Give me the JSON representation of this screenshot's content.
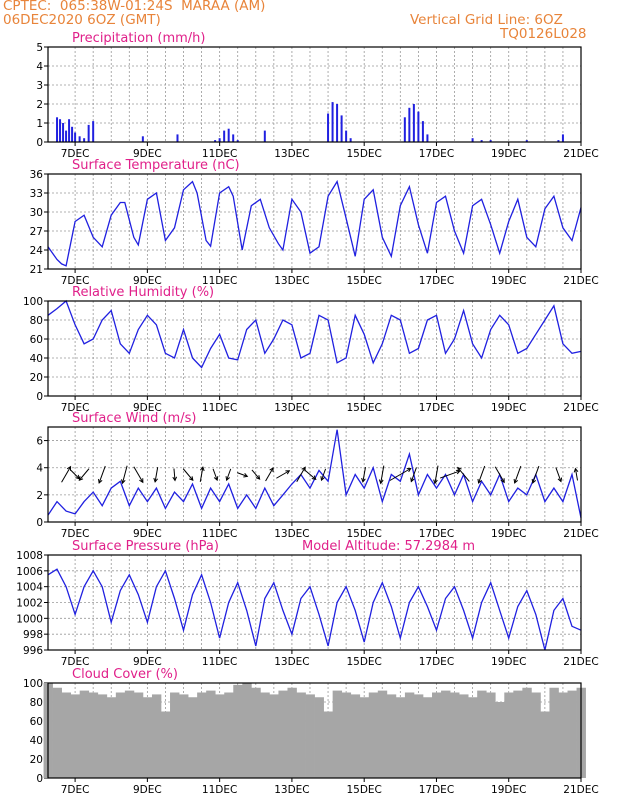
{
  "header": {
    "line1": "CPTEC:  065:38W-01:24S  MARAA (AM)",
    "line2": "06DEC2020 6OZ (GMT)",
    "grid_note": "Vertical Grid Line: 6OZ",
    "code": "TQ0126L028"
  },
  "colors": {
    "series": "#2020e0",
    "cloud": "#a6a6a6",
    "title": "#e0208a",
    "header": "#e8843a"
  },
  "x_axis": {
    "start": "06DEC2020 06Z",
    "end": "21DEC2020 00Z",
    "tick_labels": [
      "7DEC",
      "9DEC",
      "11DEC",
      "13DEC",
      "15DEC",
      "17DEC",
      "19DEC",
      "21DEC"
    ]
  },
  "chart_data": [
    {
      "type": "bar",
      "title": "Precipitation (mm/h)",
      "ylim": [
        0,
        5
      ],
      "yticks": [
        "0",
        "1",
        "2",
        "3",
        "4",
        "5"
      ],
      "grid": true,
      "x": [
        "06DEC 12Z",
        "06DEC 14Z",
        "06DEC 16Z",
        "06DEC 18Z",
        "06DEC 20Z",
        "06DEC 22Z",
        "07DEC 00Z",
        "07DEC 03Z",
        "07DEC 06Z",
        "07DEC 09Z",
        "07DEC 12Z",
        "08DEC 21Z",
        "09DEC 20Z",
        "10DEC 21Z",
        "11DEC 00Z",
        "11DEC 03Z",
        "11DEC 06Z",
        "11DEC 09Z",
        "11DEC 12Z",
        "12DEC 06Z",
        "14DEC 00Z",
        "14DEC 03Z",
        "14DEC 06Z",
        "14DEC 09Z",
        "14DEC 12Z",
        "14DEC 15Z",
        "16DEC 03Z",
        "16DEC 06Z",
        "16DEC 09Z",
        "16DEC 12Z",
        "16DEC 15Z",
        "16DEC 18Z",
        "18DEC 00Z",
        "18DEC 06Z",
        "18DEC 12Z",
        "19DEC 12Z",
        "20DEC 09Z",
        "20DEC 12Z"
      ],
      "values": [
        1.3,
        1.2,
        1.0,
        0.6,
        1.2,
        0.8,
        0.5,
        0.3,
        0.2,
        0.9,
        1.1,
        0.3,
        0.4,
        0.1,
        0.2,
        0.6,
        0.7,
        0.4,
        0.1,
        0.6,
        1.5,
        2.1,
        2.0,
        1.4,
        0.6,
        0.2,
        1.3,
        1.8,
        2.0,
        1.6,
        1.1,
        0.4,
        0.2,
        0.1,
        0.1,
        0.1,
        0.1,
        0.4
      ]
    },
    {
      "type": "line",
      "title": "Surface Temperature (nC)",
      "ylim": [
        21,
        36
      ],
      "yticks": [
        "21",
        "24",
        "27",
        "30",
        "33",
        "36"
      ],
      "grid": true,
      "x": [
        "06DEC 06Z",
        "06DEC 12Z",
        "06DEC 15Z",
        "06DEC 18Z",
        "07DEC 00Z",
        "07DEC 06Z",
        "07DEC 12Z",
        "07DEC 18Z",
        "08DEC 00Z",
        "08DEC 06Z",
        "08DEC 09Z",
        "08DEC 15Z",
        "08DEC 18Z",
        "09DEC 00Z",
        "09DEC 06Z",
        "09DEC 12Z",
        "09DEC 18Z",
        "10DEC 00Z",
        "10DEC 06Z",
        "10DEC 09Z",
        "10DEC 15Z",
        "10DEC 18Z",
        "11DEC 00Z",
        "11DEC 06Z",
        "11DEC 09Z",
        "11DEC 15Z",
        "11DEC 21Z",
        "12DEC 03Z",
        "12DEC 09Z",
        "12DEC 15Z",
        "12DEC 18Z",
        "13DEC 00Z",
        "13DEC 06Z",
        "13DEC 12Z",
        "13DEC 18Z",
        "14DEC 00Z",
        "14DEC 06Z",
        "14DEC 12Z",
        "14DEC 18Z",
        "15DEC 00Z",
        "15DEC 06Z",
        "15DEC 12Z",
        "15DEC 18Z",
        "16DEC 00Z",
        "16DEC 06Z",
        "16DEC 12Z",
        "16DEC 18Z",
        "17DEC 00Z",
        "17DEC 06Z",
        "17DEC 12Z",
        "17DEC 18Z",
        "18DEC 00Z",
        "18DEC 06Z",
        "18DEC 12Z",
        "18DEC 18Z",
        "19DEC 00Z",
        "19DEC 06Z",
        "19DEC 12Z",
        "19DEC 18Z",
        "20DEC 00Z",
        "20DEC 06Z",
        "20DEC 12Z",
        "20DEC 18Z",
        "21DEC 00Z"
      ],
      "values": [
        24.5,
        22.5,
        21.8,
        21.5,
        28.5,
        29.5,
        26.0,
        24.5,
        29.5,
        31.5,
        31.5,
        26.0,
        24.8,
        32.0,
        33.0,
        25.5,
        27.5,
        33.5,
        34.8,
        33.0,
        25.5,
        24.6,
        33.0,
        34.0,
        32.5,
        24.0,
        31.0,
        32.0,
        27.5,
        25.0,
        24.0,
        32.0,
        30.0,
        23.5,
        24.5,
        32.5,
        34.8,
        29.0,
        23.0,
        32.0,
        33.5,
        26.0,
        23.0,
        31.0,
        34.0,
        28.0,
        23.5,
        31.5,
        32.5,
        27.0,
        23.5,
        31.0,
        32.0,
        28.0,
        23.5,
        28.5,
        32.0,
        26.0,
        24.5,
        30.5,
        32.5,
        27.5,
        25.5,
        30.7
      ]
    },
    {
      "type": "line",
      "title": "Relative Humidity (%)",
      "ylim": [
        0,
        100
      ],
      "yticks": [
        "0",
        "20",
        "40",
        "60",
        "80",
        "100"
      ],
      "grid": true,
      "x": [
        "06DEC 06Z",
        "06DEC 12Z",
        "06DEC 18Z",
        "07DEC 00Z",
        "07DEC 06Z",
        "07DEC 12Z",
        "07DEC 18Z",
        "08DEC 00Z",
        "08DEC 06Z",
        "08DEC 12Z",
        "08DEC 18Z",
        "09DEC 00Z",
        "09DEC 06Z",
        "09DEC 12Z",
        "09DEC 18Z",
        "10DEC 00Z",
        "10DEC 06Z",
        "10DEC 12Z",
        "10DEC 18Z",
        "11DEC 00Z",
        "11DEC 06Z",
        "11DEC 12Z",
        "11DEC 18Z",
        "12DEC 00Z",
        "12DEC 06Z",
        "12DEC 12Z",
        "12DEC 18Z",
        "13DEC 00Z",
        "13DEC 06Z",
        "13DEC 12Z",
        "13DEC 18Z",
        "14DEC 00Z",
        "14DEC 06Z",
        "14DEC 12Z",
        "14DEC 18Z",
        "15DEC 00Z",
        "15DEC 06Z",
        "15DEC 12Z",
        "15DEC 18Z",
        "16DEC 00Z",
        "16DEC 06Z",
        "16DEC 12Z",
        "16DEC 18Z",
        "17DEC 00Z",
        "17DEC 06Z",
        "17DEC 12Z",
        "17DEC 18Z",
        "18DEC 00Z",
        "18DEC 06Z",
        "18DEC 12Z",
        "18DEC 18Z",
        "19DEC 00Z",
        "19DEC 06Z",
        "19DEC 12Z",
        "19DEC 18Z",
        "20DEC 00Z",
        "20DEC 06Z",
        "20DEC 12Z",
        "20DEC 18Z",
        "21DEC 00Z"
      ],
      "values": [
        85,
        92,
        100,
        75,
        55,
        60,
        80,
        90,
        55,
        45,
        70,
        85,
        75,
        45,
        40,
        70,
        40,
        30,
        50,
        65,
        40,
        38,
        70,
        80,
        45,
        60,
        80,
        75,
        40,
        45,
        85,
        80,
        35,
        40,
        85,
        65,
        35,
        55,
        85,
        80,
        45,
        50,
        80,
        85,
        45,
        60,
        90,
        55,
        40,
        70,
        85,
        75,
        45,
        50,
        65,
        80,
        95,
        55,
        45,
        47
      ]
    },
    {
      "type": "line",
      "title": "Surface Wind (m/s)",
      "ylim": [
        0,
        7
      ],
      "yticks": [
        "0",
        "2",
        "4",
        "6"
      ],
      "grid": true,
      "x": [
        "06DEC 06Z",
        "06DEC 12Z",
        "06DEC 18Z",
        "07DEC 00Z",
        "07DEC 06Z",
        "07DEC 12Z",
        "07DEC 18Z",
        "08DEC 00Z",
        "08DEC 06Z",
        "08DEC 12Z",
        "08DEC 18Z",
        "09DEC 00Z",
        "09DEC 06Z",
        "09DEC 12Z",
        "09DEC 18Z",
        "10DEC 00Z",
        "10DEC 06Z",
        "10DEC 12Z",
        "10DEC 18Z",
        "11DEC 00Z",
        "11DEC 06Z",
        "11DEC 12Z",
        "11DEC 18Z",
        "12DEC 00Z",
        "12DEC 06Z",
        "12DEC 12Z",
        "12DEC 18Z",
        "13DEC 00Z",
        "13DEC 06Z",
        "13DEC 12Z",
        "13DEC 18Z",
        "14DEC 00Z",
        "14DEC 06Z",
        "14DEC 12Z",
        "14DEC 18Z",
        "15DEC 00Z",
        "15DEC 06Z",
        "15DEC 12Z",
        "15DEC 18Z",
        "16DEC 00Z",
        "16DEC 06Z",
        "16DEC 12Z",
        "16DEC 18Z",
        "17DEC 00Z",
        "17DEC 06Z",
        "17DEC 12Z",
        "17DEC 18Z",
        "18DEC 00Z",
        "18DEC 06Z",
        "18DEC 12Z",
        "18DEC 18Z",
        "19DEC 00Z",
        "19DEC 06Z",
        "19DEC 12Z",
        "19DEC 18Z",
        "20DEC 00Z",
        "20DEC 06Z",
        "20DEC 12Z",
        "20DEC 18Z",
        "21DEC 00Z"
      ],
      "values": [
        0.5,
        1.5,
        0.8,
        0.6,
        1.5,
        2.2,
        1.2,
        2.5,
        3.0,
        1.2,
        2.5,
        1.5,
        2.5,
        1.0,
        2.2,
        1.5,
        2.8,
        1.0,
        2.5,
        1.5,
        2.8,
        1.0,
        2.0,
        1.0,
        2.5,
        1.2,
        2.0,
        2.8,
        3.5,
        2.5,
        3.8,
        3.0,
        6.8,
        2.0,
        3.5,
        2.5,
        4.0,
        1.5,
        3.5,
        3.0,
        5.0,
        2.0,
        3.5,
        2.5,
        3.5,
        2.0,
        3.5,
        1.5,
        3.0,
        2.0,
        3.5,
        1.5,
        2.5,
        2.0,
        3.5,
        1.5,
        2.5,
        1.5,
        3.5,
        0.3
      ]
    },
    {
      "type": "line",
      "title": "Surface Pressure (hPa)",
      "subtitle": "Model Altitude: 57.2984 m",
      "ylim": [
        996,
        1008
      ],
      "yticks": [
        "996",
        "998",
        "1000",
        "1002",
        "1004",
        "1006",
        "1008"
      ],
      "grid": true,
      "x": [
        "06DEC 06Z",
        "06DEC 12Z",
        "06DEC 18Z",
        "07DEC 00Z",
        "07DEC 06Z",
        "07DEC 12Z",
        "07DEC 18Z",
        "08DEC 00Z",
        "08DEC 06Z",
        "08DEC 12Z",
        "08DEC 18Z",
        "09DEC 00Z",
        "09DEC 06Z",
        "09DEC 12Z",
        "09DEC 18Z",
        "10DEC 00Z",
        "10DEC 06Z",
        "10DEC 12Z",
        "10DEC 18Z",
        "11DEC 00Z",
        "11DEC 06Z",
        "11DEC 12Z",
        "11DEC 18Z",
        "12DEC 00Z",
        "12DEC 06Z",
        "12DEC 12Z",
        "12DEC 18Z",
        "13DEC 00Z",
        "13DEC 06Z",
        "13DEC 12Z",
        "13DEC 18Z",
        "14DEC 00Z",
        "14DEC 06Z",
        "14DEC 12Z",
        "14DEC 18Z",
        "15DEC 00Z",
        "15DEC 06Z",
        "15DEC 12Z",
        "15DEC 18Z",
        "16DEC 00Z",
        "16DEC 06Z",
        "16DEC 12Z",
        "16DEC 18Z",
        "17DEC 00Z",
        "17DEC 06Z",
        "17DEC 12Z",
        "17DEC 18Z",
        "18DEC 00Z",
        "18DEC 06Z",
        "18DEC 12Z",
        "18DEC 18Z",
        "19DEC 00Z",
        "19DEC 06Z",
        "19DEC 12Z",
        "19DEC 18Z",
        "20DEC 00Z",
        "20DEC 06Z",
        "20DEC 12Z",
        "20DEC 18Z",
        "21DEC 00Z"
      ],
      "values": [
        1005.5,
        1006.2,
        1004.0,
        1000.5,
        1004.0,
        1006.0,
        1004.0,
        999.5,
        1003.5,
        1005.5,
        1003.0,
        999.5,
        1004.0,
        1006.0,
        1002.5,
        998.5,
        1003.0,
        1005.5,
        1002.0,
        997.5,
        1002.0,
        1004.5,
        1001.0,
        996.5,
        1002.5,
        1004.5,
        1001.0,
        998.0,
        1002.5,
        1004.0,
        1000.5,
        996.5,
        1002.0,
        1004.0,
        1001.0,
        997.0,
        1002.0,
        1004.5,
        1001.5,
        997.5,
        1002.0,
        1004.0,
        1001.5,
        998.5,
        1002.5,
        1004.0,
        1001.0,
        997.5,
        1002.0,
        1004.5,
        1001.0,
        997.5,
        1001.5,
        1003.5,
        1000.5,
        996.0,
        1001.0,
        1002.5,
        999.0,
        998.5
      ]
    },
    {
      "type": "bar",
      "title": "Cloud Cover (%)",
      "ylim": [
        0,
        100
      ],
      "yticks": [
        "0",
        "20",
        "40",
        "60",
        "80",
        "100"
      ],
      "grid": true,
      "x": [
        "06DEC 06Z",
        "06DEC 12Z",
        "06DEC 18Z",
        "07DEC 00Z",
        "07DEC 06Z",
        "07DEC 12Z",
        "07DEC 18Z",
        "08DEC 00Z",
        "08DEC 06Z",
        "08DEC 12Z",
        "08DEC 18Z",
        "09DEC 00Z",
        "09DEC 06Z",
        "09DEC 12Z",
        "09DEC 18Z",
        "10DEC 00Z",
        "10DEC 06Z",
        "10DEC 12Z",
        "10DEC 18Z",
        "11DEC 00Z",
        "11DEC 06Z",
        "11DEC 12Z",
        "11DEC 18Z",
        "12DEC 00Z",
        "12DEC 06Z",
        "12DEC 12Z",
        "12DEC 18Z",
        "13DEC 00Z",
        "13DEC 06Z",
        "13DEC 12Z",
        "13DEC 18Z",
        "14DEC 00Z",
        "14DEC 06Z",
        "14DEC 12Z",
        "14DEC 18Z",
        "15DEC 00Z",
        "15DEC 06Z",
        "15DEC 12Z",
        "15DEC 18Z",
        "16DEC 00Z",
        "16DEC 06Z",
        "16DEC 12Z",
        "16DEC 18Z",
        "17DEC 00Z",
        "17DEC 06Z",
        "17DEC 12Z",
        "17DEC 18Z",
        "18DEC 00Z",
        "18DEC 06Z",
        "18DEC 12Z",
        "18DEC 18Z",
        "19DEC 00Z",
        "19DEC 06Z",
        "19DEC 12Z",
        "19DEC 18Z",
        "20DEC 00Z",
        "20DEC 06Z",
        "20DEC 12Z",
        "20DEC 18Z",
        "21DEC 00Z"
      ],
      "values": [
        100,
        95,
        90,
        88,
        92,
        90,
        88,
        85,
        90,
        92,
        90,
        85,
        88,
        70,
        90,
        88,
        85,
        90,
        92,
        88,
        90,
        98,
        100,
        95,
        90,
        88,
        92,
        95,
        90,
        88,
        85,
        70,
        92,
        90,
        88,
        85,
        90,
        92,
        88,
        85,
        90,
        88,
        85,
        90,
        92,
        90,
        88,
        85,
        92,
        90,
        80,
        90,
        92,
        95,
        90,
        70,
        95,
        90,
        92,
        95
      ]
    }
  ],
  "wind_arrows": [
    {
      "x": "06DEC 18Z",
      "dir": 30,
      "speed": 2.0
    },
    {
      "x": "07DEC 00Z",
      "dir": 135,
      "speed": 1.0
    },
    {
      "x": "07DEC 06Z",
      "dir": 220,
      "speed": 1.5
    },
    {
      "x": "07DEC 18Z",
      "dir": 200,
      "speed": 2.0
    },
    {
      "x": "08DEC 09Z",
      "dir": 195,
      "speed": 2.0
    },
    {
      "x": "08DEC 18Z",
      "dir": 150,
      "speed": 2.0
    },
    {
      "x": "09DEC 06Z",
      "dir": 190,
      "speed": 1.5
    },
    {
      "x": "09DEC 18Z",
      "dir": 175,
      "speed": 1.0
    },
    {
      "x": "10DEC 03Z",
      "dir": 140,
      "speed": 1.5
    },
    {
      "x": "10DEC 12Z",
      "dir": 10,
      "speed": 1.5
    },
    {
      "x": "10DEC 21Z",
      "dir": 160,
      "speed": 1.0
    },
    {
      "x": "11DEC 06Z",
      "dir": 200,
      "speed": 1.0
    },
    {
      "x": "11DEC 15Z",
      "dir": 110,
      "speed": 0.8
    },
    {
      "x": "12DEC 00Z",
      "dir": 140,
      "speed": 1.0
    },
    {
      "x": "12DEC 09Z",
      "dir": 30,
      "speed": 1.5
    },
    {
      "x": "12DEC 18Z",
      "dir": 60,
      "speed": 1.5
    },
    {
      "x": "13DEC 06Z",
      "dir": 30,
      "speed": 1.8
    },
    {
      "x": "13DEC 12Z",
      "dir": 130,
      "speed": 1.5
    },
    {
      "x": "13DEC 21Z",
      "dir": 200,
      "speed": 1.0
    },
    {
      "x": "15DEC 00Z",
      "dir": 190,
      "speed": 1.5
    },
    {
      "x": "15DEC 12Z",
      "dir": 190,
      "speed": 2.0
    },
    {
      "x": "16DEC 00Z",
      "dir": 60,
      "speed": 3.0
    },
    {
      "x": "16DEC 09Z",
      "dir": 200,
      "speed": 1.5
    },
    {
      "x": "17DEC 00Z",
      "dir": 190,
      "speed": 2.0
    },
    {
      "x": "17DEC 09Z",
      "dir": 70,
      "speed": 2.5
    },
    {
      "x": "17DEC 18Z",
      "dir": 320,
      "speed": 2.0
    },
    {
      "x": "18DEC 06Z",
      "dir": 200,
      "speed": 2.0
    },
    {
      "x": "18DEC 18Z",
      "dir": 150,
      "speed": 2.0
    },
    {
      "x": "19DEC 06Z",
      "dir": 200,
      "speed": 2.0
    },
    {
      "x": "19DEC 18Z",
      "dir": 200,
      "speed": 2.0
    },
    {
      "x": "20DEC 09Z",
      "dir": 160,
      "speed": 1.5
    },
    {
      "x": "20DEC 21Z",
      "dir": 350,
      "speed": 1.0
    }
  ]
}
